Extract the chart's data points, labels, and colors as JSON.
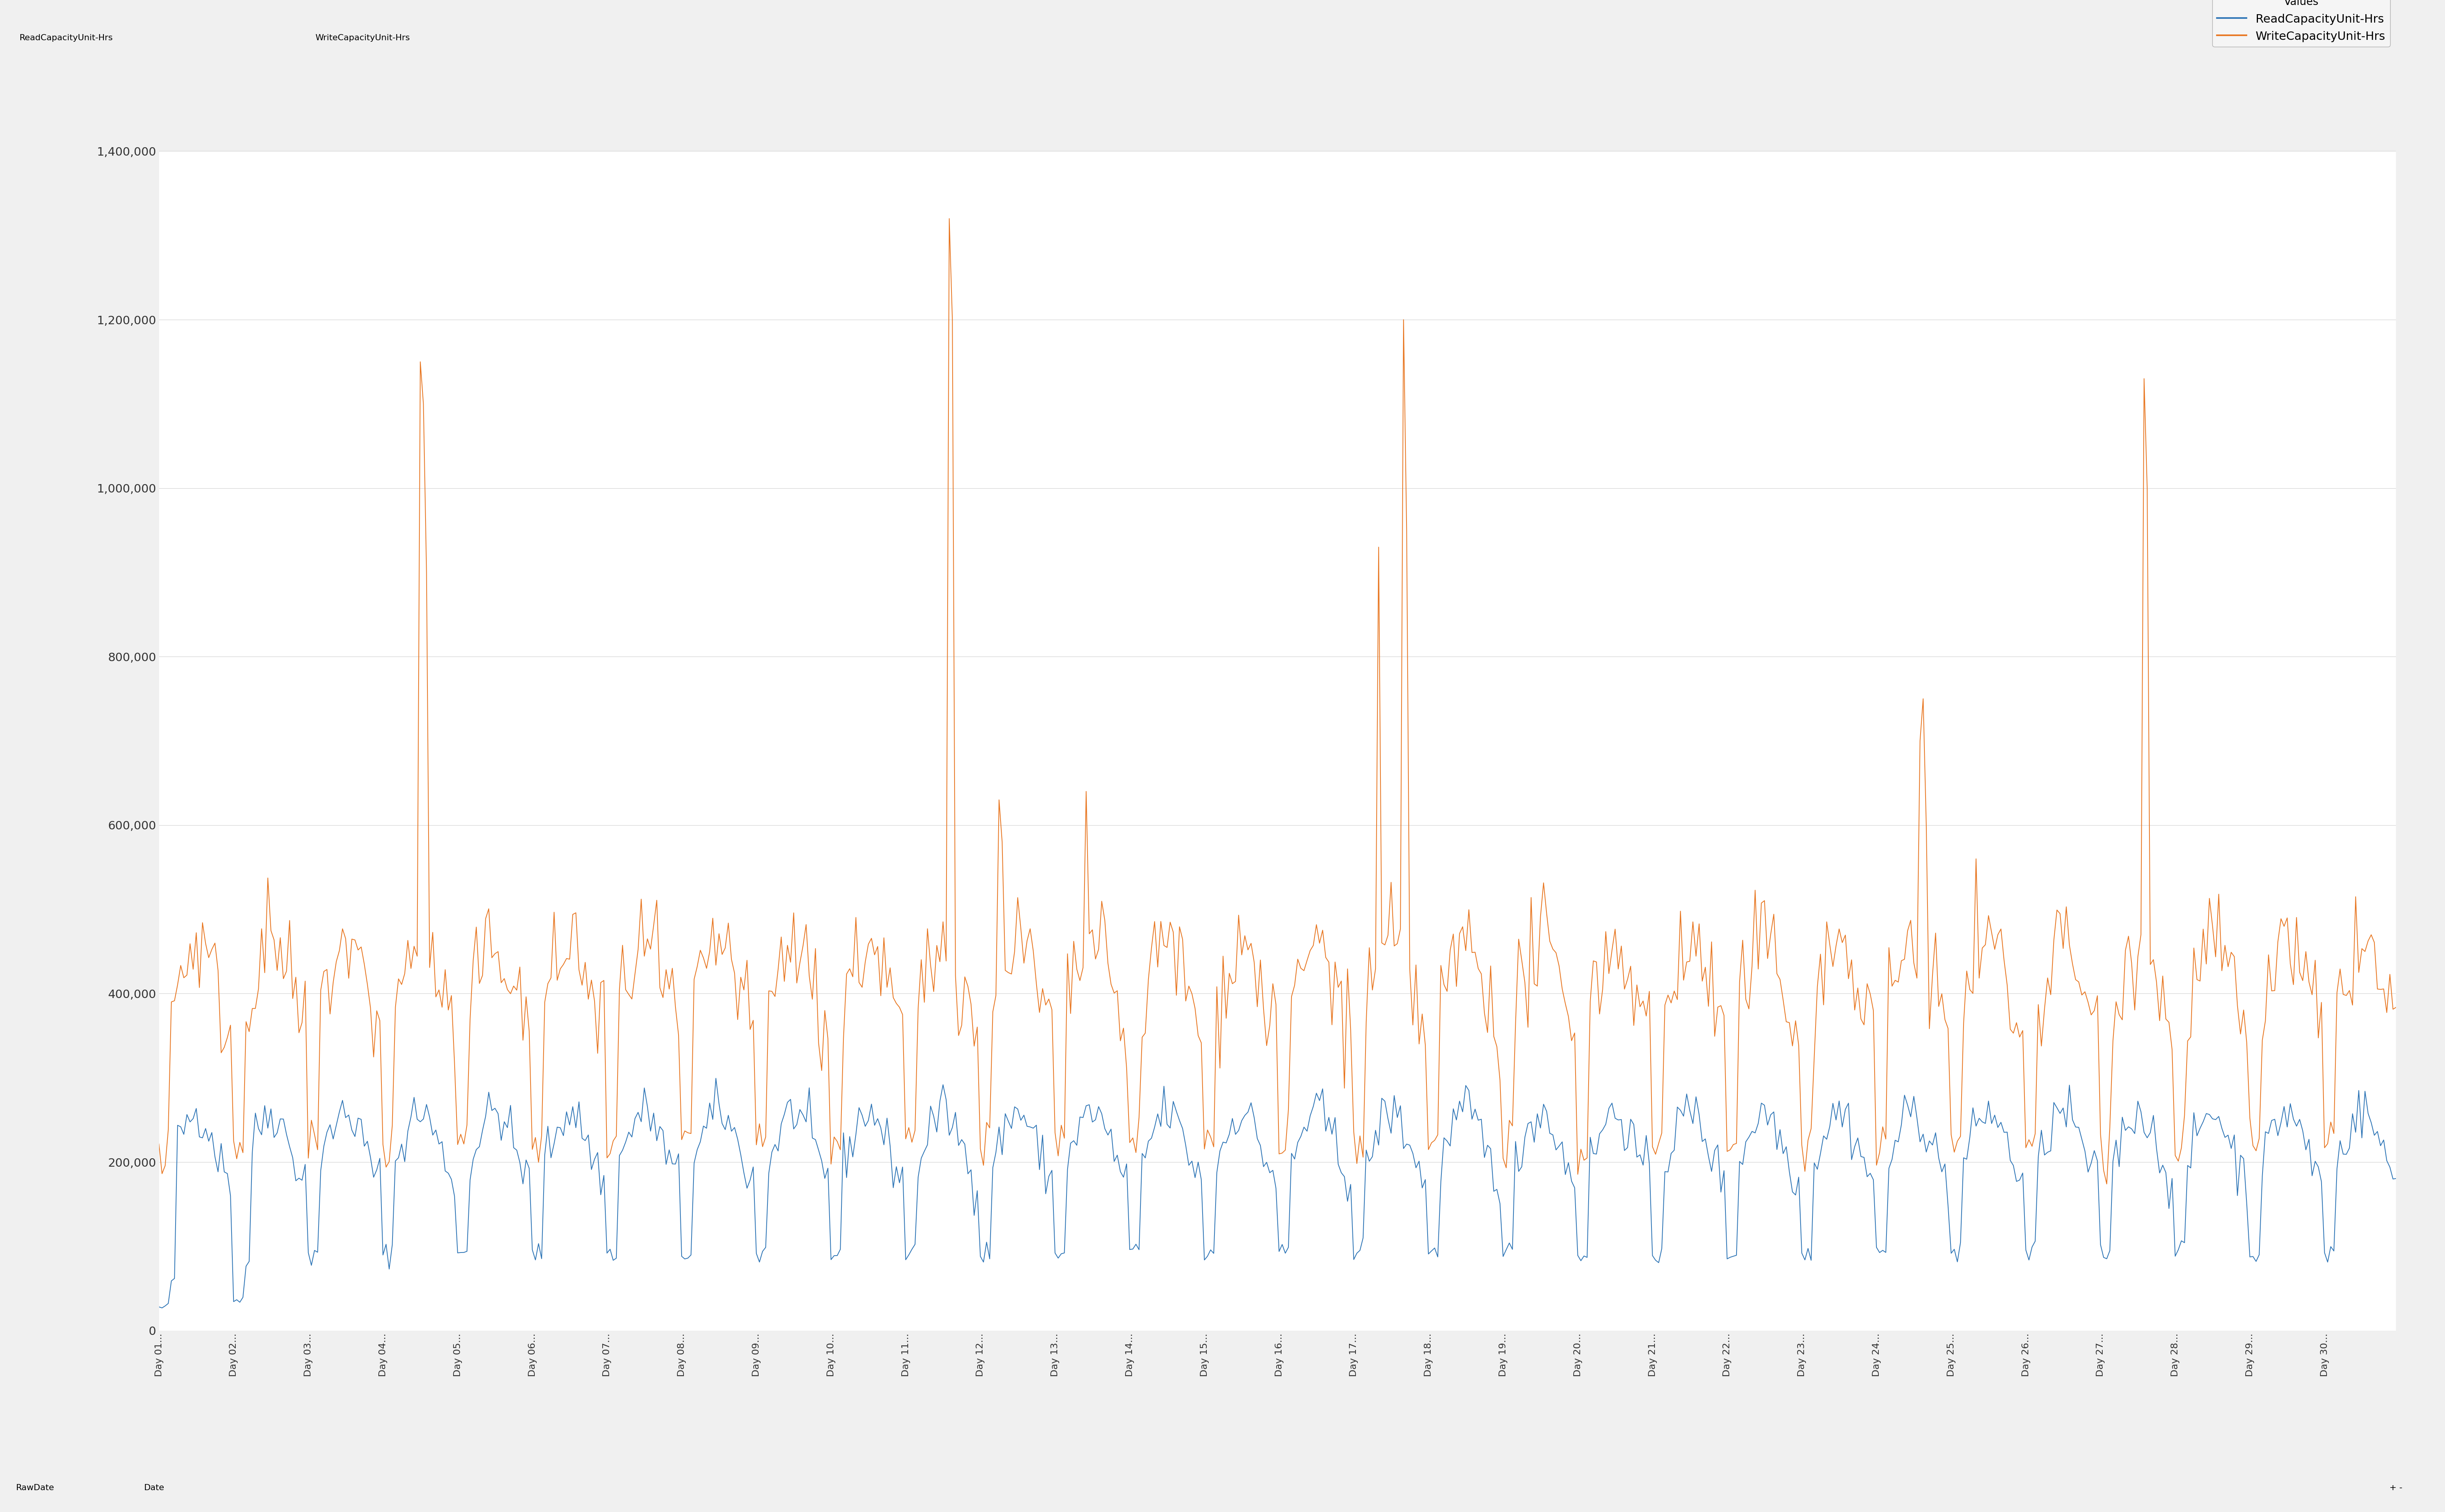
{
  "series": {
    "ReadCapacityUnit-Hrs": {
      "color": "#2E75B6",
      "linewidth": 1.5
    },
    "WriteCapacityUnit-Hrs": {
      "color": "#E87722",
      "linewidth": 1.5
    }
  },
  "ylim": [
    0,
    1400000
  ],
  "yticks": [
    0,
    200000,
    400000,
    600000,
    800000,
    1000000,
    1200000,
    1400000
  ],
  "ytick_labels": [
    "0",
    "200,000",
    "400,000",
    "600,000",
    "800,000",
    "1,000,000",
    "1,200,000",
    "1,400,000"
  ],
  "legend_title": "Values",
  "legend_labels": [
    "ReadCapacityUnit-Hrs",
    "WriteCapacityUnit-Hrs"
  ],
  "grid_color": "#CCCCCC",
  "tab_labels": [
    "ReadCapacityUnit-Hrs",
    "WriteCapacityUnit-Hrs"
  ],
  "bottom_tabs": [
    "RawDate",
    "Date"
  ],
  "num_days": 30,
  "hours_per_day": 24
}
